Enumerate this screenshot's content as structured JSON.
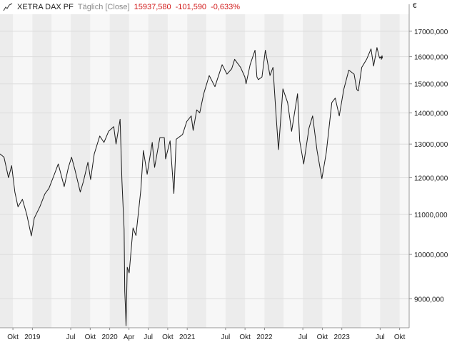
{
  "legend": {
    "name": "XETRA DAX PF",
    "interval": "Täglich [Close]",
    "last": "15937,580",
    "change": "-101,590",
    "change_pct": "-0,633%"
  },
  "colors": {
    "line": "#1a1a1a",
    "band_light": "#f7f7f7",
    "band_dark": "#ececec",
    "grid": "#dcdcdc",
    "negative": "#d11a1a"
  },
  "chart_data": {
    "type": "line",
    "title": "XETRA DAX PF",
    "subtitle": "Täglich [Close]",
    "currency_label": "€",
    "yscale": "log",
    "ylim": [
      8400,
      17700
    ],
    "xlim": [
      "2018-08-01",
      "2023-11-15"
    ],
    "y_ticks": [
      {
        "value": 9000,
        "label": "9000,000"
      },
      {
        "value": 10000,
        "label": "10000,000"
      },
      {
        "value": 11000,
        "label": "11000,000"
      },
      {
        "value": 12000,
        "label": "12000,000"
      },
      {
        "value": 13000,
        "label": "13000,000"
      },
      {
        "value": 14000,
        "label": "14000,000"
      },
      {
        "value": 15000,
        "label": "15000,000"
      },
      {
        "value": 16000,
        "label": "16000,000"
      },
      {
        "value": 17000,
        "label": "17000,000"
      }
    ],
    "x_ticks": [
      {
        "date": "2018-10-01",
        "label": "Okt"
      },
      {
        "date": "2019-01-01",
        "label": "2019"
      },
      {
        "date": "2019-07-01",
        "label": "Jul"
      },
      {
        "date": "2019-10-01",
        "label": "Okt"
      },
      {
        "date": "2020-01-01",
        "label": "2020"
      },
      {
        "date": "2020-04-01",
        "label": "Apr"
      },
      {
        "date": "2020-07-01",
        "label": "Jul"
      },
      {
        "date": "2020-10-01",
        "label": "Okt"
      },
      {
        "date": "2021-01-01",
        "label": "2021"
      },
      {
        "date": "2021-07-01",
        "label": "Jul"
      },
      {
        "date": "2021-10-01",
        "label": "Okt"
      },
      {
        "date": "2022-01-01",
        "label": "2022"
      },
      {
        "date": "2022-07-01",
        "label": "Jul"
      },
      {
        "date": "2022-10-01",
        "label": "Okt"
      },
      {
        "date": "2023-01-01",
        "label": "2023"
      },
      {
        "date": "2023-07-01",
        "label": "Jul"
      },
      {
        "date": "2023-10-01",
        "label": "Okt"
      }
    ],
    "series": [
      {
        "name": "XETRA DAX PF",
        "points": [
          [
            "2018-08-01",
            12700
          ],
          [
            "2018-08-20",
            12600
          ],
          [
            "2018-09-10",
            12000
          ],
          [
            "2018-09-25",
            12350
          ],
          [
            "2018-10-10",
            11600
          ],
          [
            "2018-10-25",
            11200
          ],
          [
            "2018-11-15",
            11400
          ],
          [
            "2018-12-05",
            11000
          ],
          [
            "2018-12-27",
            10450
          ],
          [
            "2019-01-10",
            10900
          ],
          [
            "2019-02-05",
            11200
          ],
          [
            "2019-03-01",
            11550
          ],
          [
            "2019-03-20",
            11700
          ],
          [
            "2019-04-15",
            12100
          ],
          [
            "2019-05-03",
            12400
          ],
          [
            "2019-05-31",
            11750
          ],
          [
            "2019-06-20",
            12300
          ],
          [
            "2019-07-05",
            12600
          ],
          [
            "2019-07-20",
            12250
          ],
          [
            "2019-08-15",
            11600
          ],
          [
            "2019-08-30",
            11900
          ],
          [
            "2019-09-20",
            12450
          ],
          [
            "2019-10-03",
            11950
          ],
          [
            "2019-10-20",
            12700
          ],
          [
            "2019-11-15",
            13250
          ],
          [
            "2019-12-05",
            13050
          ],
          [
            "2019-12-27",
            13400
          ],
          [
            "2020-01-20",
            13550
          ],
          [
            "2020-01-31",
            13000
          ],
          [
            "2020-02-19",
            13790
          ],
          [
            "2020-02-28",
            11900
          ],
          [
            "2020-03-09",
            10620
          ],
          [
            "2020-03-12",
            9160
          ],
          [
            "2020-03-16",
            8740
          ],
          [
            "2020-03-18",
            8440
          ],
          [
            "2020-03-24",
            9700
          ],
          [
            "2020-04-02",
            9570
          ],
          [
            "2020-04-20",
            10650
          ],
          [
            "2020-05-04",
            10460
          ],
          [
            "2020-05-27",
            11650
          ],
          [
            "2020-06-08",
            12800
          ],
          [
            "2020-06-26",
            12100
          ],
          [
            "2020-07-20",
            13050
          ],
          [
            "2020-07-31",
            12300
          ],
          [
            "2020-08-25",
            13200
          ],
          [
            "2020-09-15",
            13200
          ],
          [
            "2020-09-21",
            12550
          ],
          [
            "2020-10-12",
            13100
          ],
          [
            "2020-10-30",
            11560
          ],
          [
            "2020-11-10",
            13150
          ],
          [
            "2020-12-10",
            13300
          ],
          [
            "2020-12-30",
            13720
          ],
          [
            "2021-01-20",
            13900
          ],
          [
            "2021-01-29",
            13430
          ],
          [
            "2021-02-15",
            14100
          ],
          [
            "2021-03-01",
            14000
          ],
          [
            "2021-03-20",
            14650
          ],
          [
            "2021-04-15",
            15300
          ],
          [
            "2021-05-12",
            14900
          ],
          [
            "2021-06-15",
            15700
          ],
          [
            "2021-07-08",
            15350
          ],
          [
            "2021-07-30",
            15550
          ],
          [
            "2021-08-13",
            15900
          ],
          [
            "2021-09-10",
            15600
          ],
          [
            "2021-09-30",
            15250
          ],
          [
            "2021-10-06",
            15000
          ],
          [
            "2021-10-25",
            15700
          ],
          [
            "2021-11-17",
            16250
          ],
          [
            "2021-11-26",
            15250
          ],
          [
            "2021-12-03",
            15150
          ],
          [
            "2021-12-20",
            15250
          ],
          [
            "2022-01-05",
            16250
          ],
          [
            "2022-01-27",
            15300
          ],
          [
            "2022-02-10",
            15600
          ],
          [
            "2022-02-24",
            14000
          ],
          [
            "2022-03-08",
            12830
          ],
          [
            "2022-03-29",
            14820
          ],
          [
            "2022-04-20",
            14350
          ],
          [
            "2022-05-09",
            13400
          ],
          [
            "2022-06-06",
            14650
          ],
          [
            "2022-06-16",
            13100
          ],
          [
            "2022-07-05",
            12400
          ],
          [
            "2022-07-30",
            13500
          ],
          [
            "2022-08-16",
            13900
          ],
          [
            "2022-09-06",
            12800
          ],
          [
            "2022-09-29",
            11975
          ],
          [
            "2022-10-20",
            12750
          ],
          [
            "2022-11-15",
            14350
          ],
          [
            "2022-12-01",
            14500
          ],
          [
            "2022-12-20",
            13900
          ],
          [
            "2023-01-10",
            14800
          ],
          [
            "2023-02-03",
            15500
          ],
          [
            "2023-02-28",
            15350
          ],
          [
            "2023-03-13",
            14800
          ],
          [
            "2023-03-20",
            14750
          ],
          [
            "2023-04-05",
            15600
          ],
          [
            "2023-04-28",
            15900
          ],
          [
            "2023-05-19",
            16300
          ],
          [
            "2023-05-31",
            15650
          ],
          [
            "2023-06-16",
            16350
          ],
          [
            "2023-06-28",
            15950
          ],
          [
            "2023-07-05",
            16000
          ],
          [
            "2023-07-07",
            15900
          ],
          [
            "2023-07-10",
            16040
          ],
          [
            "2023-07-12",
            15940
          ]
        ]
      }
    ]
  }
}
